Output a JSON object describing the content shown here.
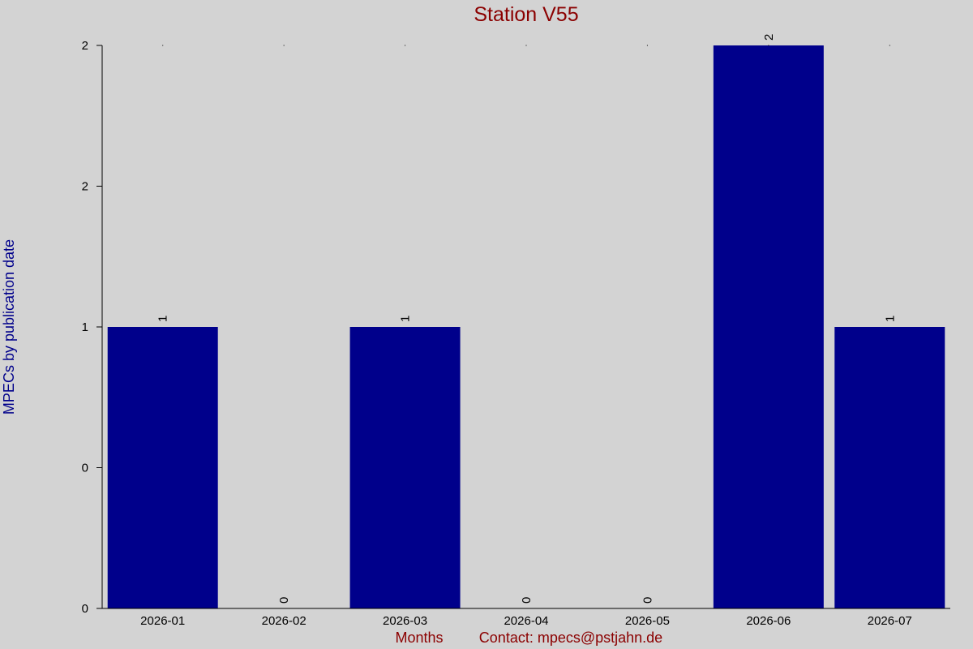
{
  "chart_data": {
    "type": "bar",
    "title": "Station V55",
    "xlabel": "Months",
    "ylabel": "MPECs by publication date",
    "contact": "Contact: mpecs@pstjahn.de",
    "categories": [
      "2026-01",
      "2026-02",
      "2026-03",
      "2026-04",
      "2026-05",
      "2026-06",
      "2026-07"
    ],
    "values": [
      1,
      0,
      1,
      0,
      0,
      2,
      1
    ],
    "value_labels": [
      "1",
      "0",
      "1",
      "0",
      "0",
      "2",
      "1"
    ],
    "ylim": [
      0,
      2
    ],
    "y_ticks": [
      {
        "value": 0,
        "label": "0"
      },
      {
        "value": 0.5,
        "label": "0"
      },
      {
        "value": 1,
        "label": "1"
      },
      {
        "value": 1.5,
        "label": "2"
      },
      {
        "value": 2,
        "label": "2"
      }
    ],
    "grid": false,
    "legend": "none",
    "colors": {
      "bar": "#00008b",
      "background": "#d3d3d3",
      "title": "#8b0000",
      "ylabel": "#00008b",
      "xlabel": "#8b0000",
      "axis": "#000000"
    }
  }
}
